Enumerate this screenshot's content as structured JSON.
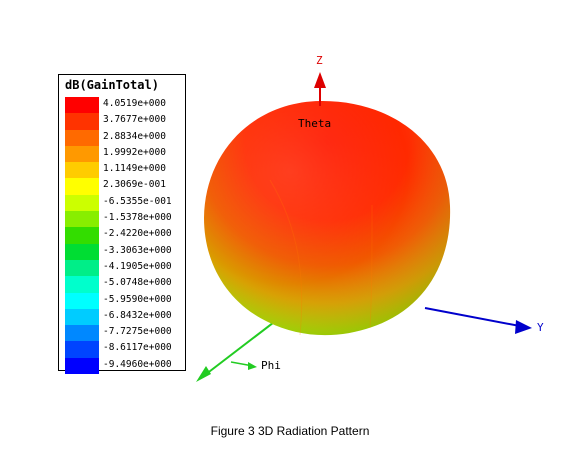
{
  "legend": {
    "title": "dB(GainTotal)",
    "entries": [
      {
        "label": "4.0519e+000",
        "color": "#ff0000"
      },
      {
        "label": "3.7677e+000",
        "color": "#ff3300"
      },
      {
        "label": "2.8834e+000",
        "color": "#ff6a00"
      },
      {
        "label": "1.9992e+000",
        "color": "#ff9900"
      },
      {
        "label": "1.1149e+000",
        "color": "#ffcc00"
      },
      {
        "label": "2.3069e-001",
        "color": "#ffff00"
      },
      {
        "label": "-6.5355e-001",
        "color": "#ccff00"
      },
      {
        "label": "-1.5378e+000",
        "color": "#88ee00"
      },
      {
        "label": "-2.4220e+000",
        "color": "#33dd00"
      },
      {
        "label": "-3.3063e+000",
        "color": "#00dd33"
      },
      {
        "label": "-4.1905e+000",
        "color": "#00ee88"
      },
      {
        "label": "-5.0748e+000",
        "color": "#00ffcc"
      },
      {
        "label": "-5.9590e+000",
        "color": "#00ffff"
      },
      {
        "label": "-6.8432e+000",
        "color": "#00ccff"
      },
      {
        "label": "-7.7275e+000",
        "color": "#0088ff"
      },
      {
        "label": "-8.6117e+000",
        "color": "#0044ff"
      },
      {
        "label": "-9.4960e+000",
        "color": "#0000ff"
      }
    ]
  },
  "axes": {
    "z_label": "Z",
    "y_label": "Y",
    "phi_label": "Phi",
    "theta_label": "Theta",
    "z_color": "#dd0000",
    "y_color": "#0000cc",
    "x_color": "#22cc22"
  },
  "caption": "Figure 3 3D Radiation Pattern"
}
